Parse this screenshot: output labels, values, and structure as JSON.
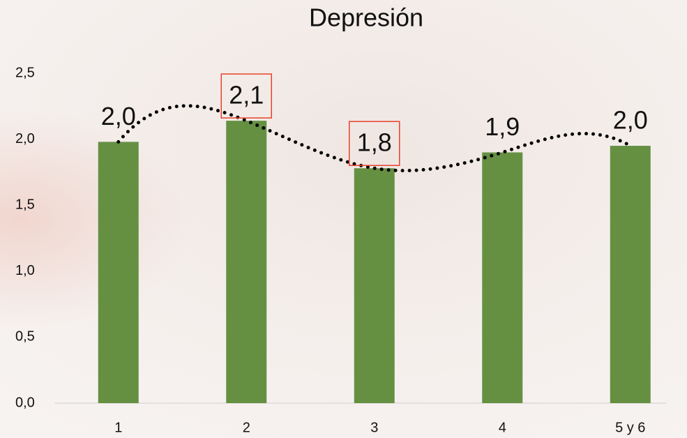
{
  "chart_data": {
    "type": "bar",
    "title": "Depresión",
    "categories": [
      "1",
      "2",
      "3",
      "4",
      "5 y 6"
    ],
    "values": [
      1.98,
      2.14,
      1.78,
      1.9,
      1.95
    ],
    "value_labels": [
      "2,0",
      "2,1",
      "1,8",
      "1,9",
      "2,0"
    ],
    "color": "#659042",
    "trend_line": true,
    "trend_color": "#000000",
    "highlighted_indices": [
      1,
      2
    ],
    "highlight_color": "#e8412c",
    "ylim": [
      0,
      2.5
    ],
    "yticks": [
      {
        "value": 0,
        "label": "0,0"
      },
      {
        "value": 0.5,
        "label": "0,5"
      },
      {
        "value": 1,
        "label": "1,0"
      },
      {
        "value": 1.5,
        "label": "1,5"
      },
      {
        "value": 2,
        "label": "2,0"
      },
      {
        "value": 2.5,
        "label": "2,5"
      }
    ],
    "grid": false
  }
}
